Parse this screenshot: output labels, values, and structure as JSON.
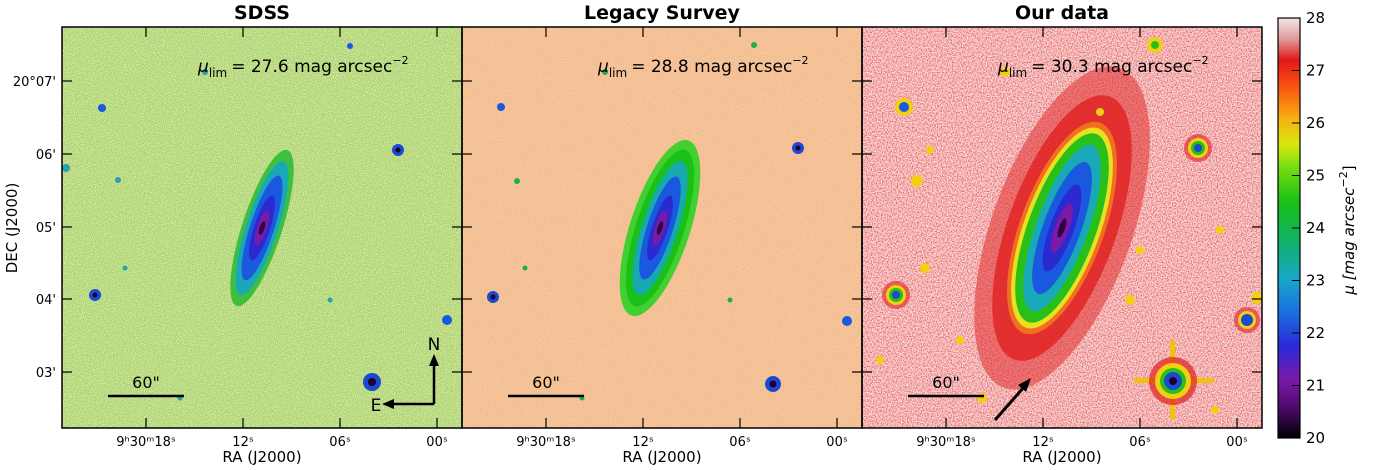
{
  "panels": [
    {
      "title": "SDSS",
      "mu_symbol": "μ",
      "mu_sub": "lim",
      "mu_value": "= 27.6 mag arcsec",
      "mu_exp": "−2",
      "scale": "60\""
    },
    {
      "title": "Legacy Survey",
      "mu_symbol": "μ",
      "mu_sub": "lim",
      "mu_value": "= 28.8 mag arcsec",
      "mu_exp": "−2",
      "scale": "60\""
    },
    {
      "title": "Our data",
      "mu_symbol": "μ",
      "mu_sub": "lim",
      "mu_value": "= 30.3 mag arcsec",
      "mu_exp": "−2",
      "scale": "60\""
    }
  ],
  "ylabel": "DEC (J2000)",
  "xlabel": "RA (J2000)",
  "y_ticks": [
    "20°07'",
    "06'",
    "05'",
    "04'",
    "03'"
  ],
  "x_ticks": {
    "first": "9ʰ30ᵐ18ˢ",
    "mid1": "12ˢ",
    "mid2": "06ˢ",
    "last": "00ˢ"
  },
  "compass": {
    "north": "N",
    "east": "E"
  },
  "colorbar": {
    "label_prefix": "μ [mag arcsec",
    "label_exp": "−2",
    "label_suffix": "]",
    "ticks": [
      "28",
      "27",
      "26",
      "25",
      "24",
      "23",
      "22",
      "21",
      "20"
    ]
  },
  "colors": {
    "sdss_background": "#a9d67a",
    "legacy_background": "#f3c799",
    "our_background": "#f2dada",
    "halo_red": "#e02020",
    "halo_green": "#22c01a",
    "core_blue": "#1a4ad0",
    "core_purple": "#6a1aa0"
  }
}
